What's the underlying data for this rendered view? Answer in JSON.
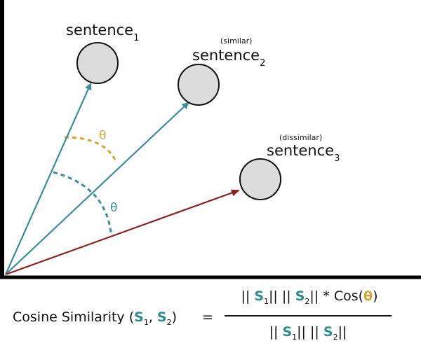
{
  "sentences": [
    {
      "label": "sentence",
      "subscript": "1",
      "qualifier": ""
    },
    {
      "label": "sentence",
      "subscript": "2",
      "qualifier": "(similar)"
    },
    {
      "label": "sentence",
      "subscript": "3",
      "qualifier": "(dissimilar)"
    }
  ],
  "angles": [
    {
      "symbol": "θ",
      "color": "#d4a53a"
    },
    {
      "symbol": "θ",
      "color": "#2f8a8c"
    }
  ],
  "colors": {
    "teal": "#3b8e95",
    "red": "#8e2020",
    "gold": "#d4a53a",
    "node_fill": "#dcdcdc",
    "axis": "#000000"
  },
  "formula": {
    "lhs_text": "Cosine Similarity (",
    "var_letter": "S",
    "sub1": "1",
    "sub2": "2",
    "comma": ", ",
    "close_paren": ")",
    "equals": "=",
    "bars": "||",
    "times_cos": " * Cos(",
    "theta": "θ",
    "end_paren": ")"
  }
}
